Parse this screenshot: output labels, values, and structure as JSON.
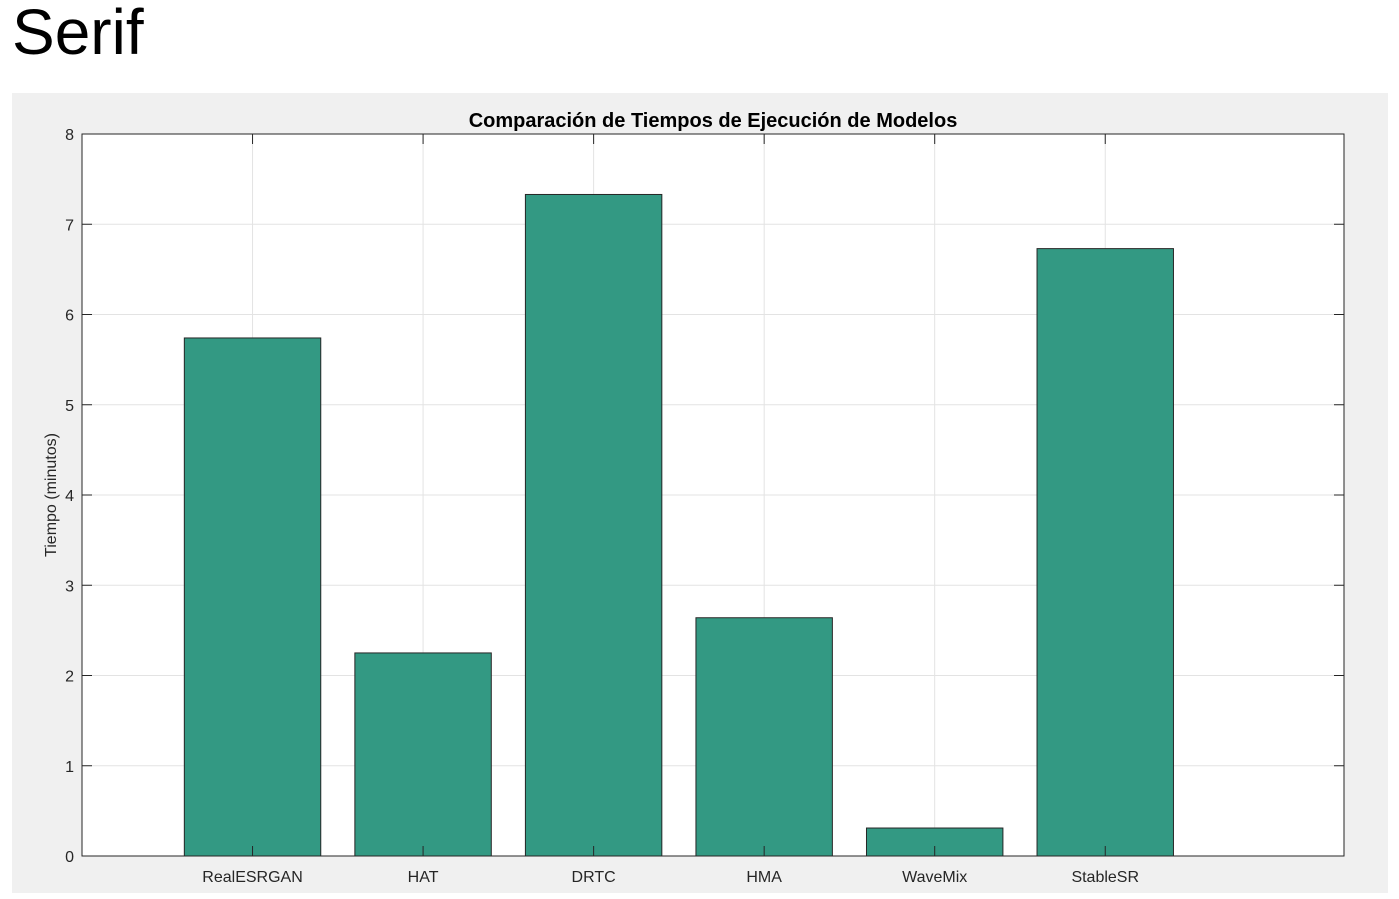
{
  "page": {
    "heading": "Serif"
  },
  "colors": {
    "bar_fill": "#339983",
    "bar_edge": "#262626",
    "grid": "#e3e3e3",
    "panel": "#f0f0f0"
  },
  "chart_data": {
    "type": "bar",
    "title": "Comparación de Tiempos de Ejecución de Modelos",
    "xlabel": "",
    "ylabel": "Tiempo (minutos)",
    "categories": [
      "RealESRGAN",
      "HAT",
      "DRTC",
      "HMA",
      "WaveMix",
      "StableSR"
    ],
    "values": [
      5.74,
      2.25,
      7.33,
      2.64,
      0.31,
      6.73
    ],
    "xlim": [
      0,
      7.4
    ],
    "ylim": [
      0,
      8
    ],
    "yticks": [
      0,
      1,
      2,
      3,
      4,
      5,
      6,
      7,
      8
    ],
    "grid": true
  }
}
